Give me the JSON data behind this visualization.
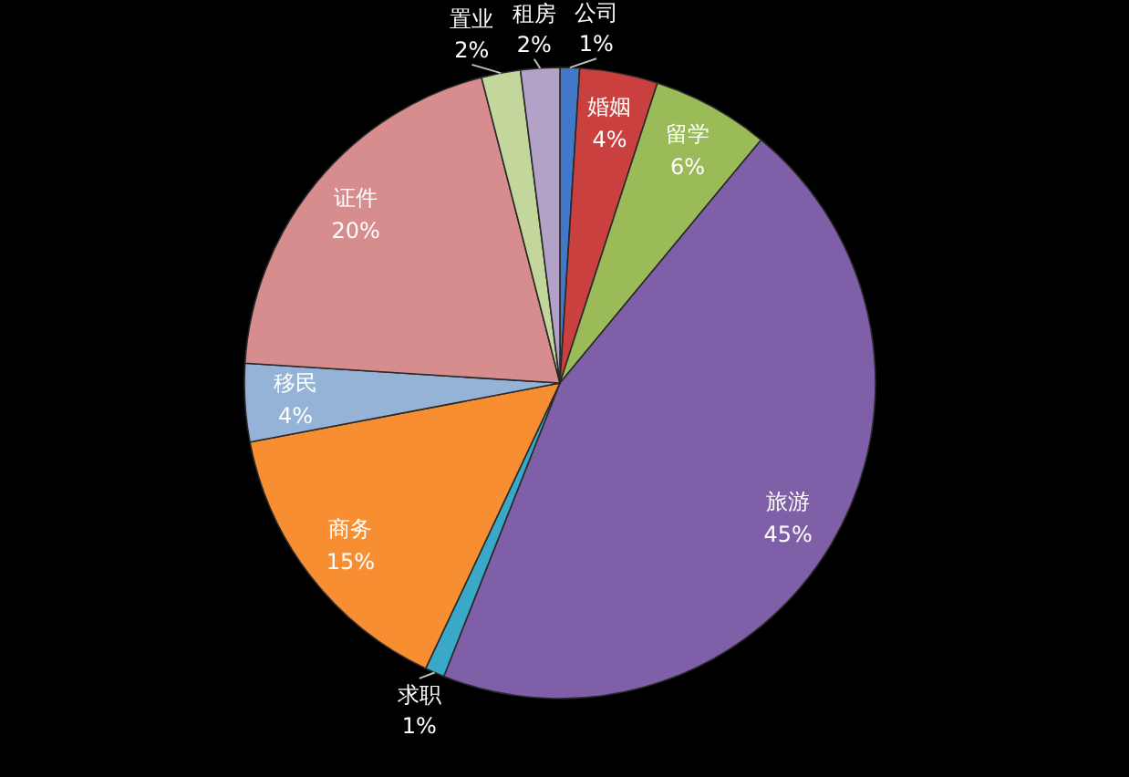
{
  "chart_data": {
    "type": "pie",
    "categories": [
      "公司",
      "婚姻",
      "留学",
      "旅游",
      "求职",
      "商务",
      "移民",
      "证件",
      "置业",
      "租房"
    ],
    "values": [
      1,
      4,
      6,
      45,
      1,
      15,
      4,
      20,
      2,
      2
    ],
    "value_labels": [
      "1%",
      "4%",
      "6%",
      "45%",
      "1%",
      "15%",
      "4%",
      "20%",
      "2%",
      "2%"
    ],
    "colors": [
      "#4178c8",
      "#c9403f",
      "#9bbb59",
      "#7f60a8",
      "#3aa8c8",
      "#f78f32",
      "#95b3d7",
      "#d78d8d",
      "#c3d69b",
      "#b3a2c7"
    ]
  }
}
